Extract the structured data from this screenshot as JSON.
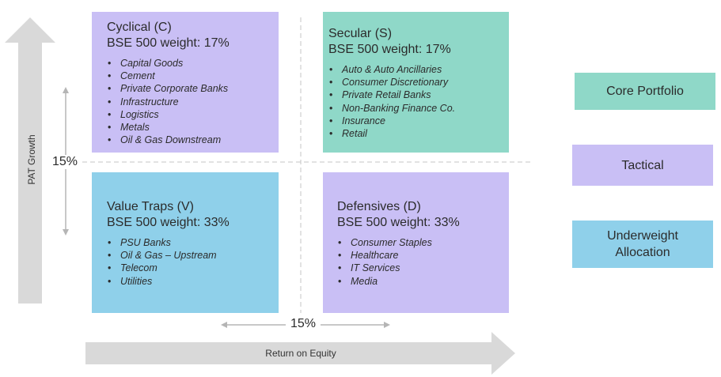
{
  "colors": {
    "purple": "#c9bff5",
    "teal": "#8fd8c8",
    "blue": "#8fd0ea",
    "arrow_gray": "#d9d9d9",
    "line_gray": "#b5b5b5"
  },
  "axes": {
    "y_label": "PAT Growth",
    "x_label": "Return on Equity",
    "y_threshold": "15%",
    "x_threshold": "15%"
  },
  "quadrants": {
    "cyclical": {
      "title": "Cyclical (C)",
      "weight": "BSE 500 weight: 17%",
      "items": [
        "Capital Goods",
        "Cement",
        "Private Corporate Banks",
        "Infrastructure",
        "Logistics",
        "Metals",
        "Oil & Gas Downstream"
      ]
    },
    "secular": {
      "title": "Secular (S)",
      "weight": "BSE 500 weight: 17%",
      "items": [
        "Auto & Auto Ancillaries",
        "Consumer Discretionary",
        "Private Retail Banks",
        "Non-Banking Finance Co.",
        "Insurance",
        "Retail"
      ]
    },
    "value_traps": {
      "title": "Value Traps (V)",
      "weight": "BSE 500 weight: 33%",
      "items": [
        "PSU Banks",
        "Oil & Gas – Upstream",
        "Telecom",
        "Utilities"
      ]
    },
    "defensives": {
      "title": "Defensives (D)",
      "weight": "BSE 500 weight: 33%",
      "items": [
        "Consumer Staples",
        "Healthcare",
        "IT Services",
        "Media"
      ]
    }
  },
  "legend": {
    "core": "Core Portfolio",
    "tactical": "Tactical",
    "underweight_line1": "Underweight",
    "underweight_line2": "Allocation"
  }
}
